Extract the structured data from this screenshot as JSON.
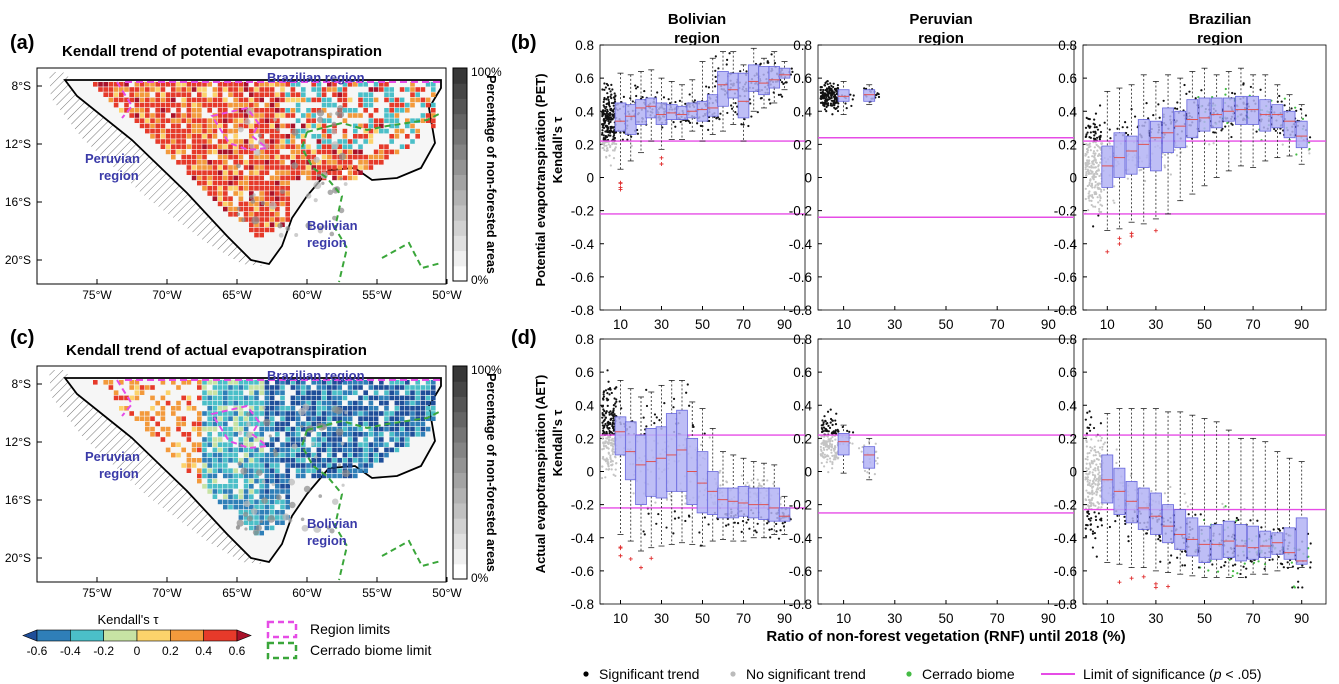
{
  "panels": {
    "a": {
      "letter": "(a)",
      "title": "Kendall trend of potential evapotranspiration"
    },
    "b": {
      "letter": "(b)"
    },
    "c": {
      "letter": "(c)",
      "title": "Kendall trend of actual evapotranspiration"
    },
    "d": {
      "letter": "(d)"
    }
  },
  "maps": {
    "lat_ticks": [
      "8°S",
      "12°S",
      "16°S",
      "20°S"
    ],
    "lon_ticks": [
      "75°W",
      "70°W",
      "65°W",
      "60°W",
      "55°W",
      "50°W"
    ],
    "region_labels": {
      "brazilian": "Brazilian region",
      "peruvian": "Peruvian\nregion",
      "peruvian_l1": "Peruvian",
      "peruvian_l2": "region",
      "bolivian_l1": "Bolivian",
      "bolivian_l2": "region"
    },
    "colorbar": {
      "top": "100%",
      "bottom": "0%",
      "title": "Percentage of non-forested areas"
    },
    "kendall_legend": {
      "title": "Kendall's τ",
      "ticks": [
        "-0.6",
        "-0.4",
        "-0.2",
        "0",
        "0.2",
        "0.4",
        "0.6"
      ],
      "colors": [
        "#1f4e99",
        "#2f7fb8",
        "#4bbfc8",
        "#c7e3a4",
        "#fcd36b",
        "#f39a3c",
        "#e63a2a",
        "#a8122a"
      ]
    },
    "limit_legend": {
      "region": "Region limits",
      "cerrado": "Cerrado biome limit"
    }
  },
  "column_titles": [
    {
      "l1": "Bolivian",
      "l2": "region"
    },
    {
      "l1": "Peruvian",
      "l2": "region"
    },
    {
      "l1": "Brazilian",
      "l2": "region"
    }
  ],
  "row_labels": {
    "b": {
      "l1": "Potential evapotranspiration (PET)",
      "l2": "Kendall's τ"
    },
    "d": {
      "l1": "Actual evapotranspiration (AET)",
      "l2": "Kendall's τ"
    }
  },
  "x_label": "Ratio of non-forest vegetation (RNF) until 2018 (%)",
  "legend": {
    "significant": "Significant trend",
    "not_significant": "No significant trend",
    "cerrado": "Cerrado biome",
    "limit": "Limit of significance (",
    "limit_p": "p",
    "limit_end": " < .05)"
  },
  "colors": {
    "box": "#b3b3f5",
    "box_edge": "#6666dd",
    "limit": "#e64ce6",
    "median": "#e05050",
    "outlier": "#e03030",
    "cerrado": "#44bb44"
  },
  "chart_data": [
    {
      "type": "box",
      "panel": "b",
      "column": "Bolivian region",
      "x": [
        10,
        15,
        20,
        25,
        30,
        35,
        40,
        45,
        50,
        55,
        60,
        65,
        70,
        75,
        80,
        85,
        90
      ],
      "median": [
        0.34,
        0.37,
        0.42,
        0.43,
        0.38,
        0.39,
        0.38,
        0.4,
        0.41,
        0.42,
        0.56,
        0.53,
        0.46,
        0.58,
        0.57,
        0.59,
        0.62
      ],
      "q1": [
        0.28,
        0.26,
        0.32,
        0.36,
        0.32,
        0.35,
        0.35,
        0.36,
        0.34,
        0.37,
        0.43,
        0.48,
        0.36,
        0.52,
        0.5,
        0.54,
        0.6
      ],
      "q3": [
        0.45,
        0.44,
        0.47,
        0.48,
        0.45,
        0.44,
        0.43,
        0.45,
        0.46,
        0.5,
        0.64,
        0.63,
        0.63,
        0.68,
        0.67,
        0.67,
        0.66
      ],
      "whisker_low": [
        0.05,
        0.1,
        0.15,
        0.22,
        0.17,
        0.23,
        0.23,
        0.28,
        0.22,
        0.26,
        0.28,
        0.32,
        0.22,
        0.4,
        0.42,
        0.45,
        0.53
      ],
      "whisker_high": [
        0.63,
        0.62,
        0.64,
        0.65,
        0.6,
        0.58,
        0.56,
        0.59,
        0.7,
        0.72,
        0.76,
        0.76,
        0.68,
        0.78,
        0.72,
        0.76,
        0.7
      ],
      "significance_limits": [
        0.22,
        -0.22
      ],
      "ylim": [
        -0.8,
        0.8
      ]
    },
    {
      "type": "box",
      "panel": "b",
      "column": "Peruvian region",
      "x": [
        10,
        20
      ],
      "median": [
        0.49,
        0.5
      ],
      "q1": [
        0.46,
        0.46
      ],
      "q3": [
        0.53,
        0.53
      ],
      "whisker_low": [
        0.38,
        0.44
      ],
      "whisker_high": [
        0.58,
        0.56
      ],
      "significance_limits": [
        0.24,
        -0.24
      ],
      "ylim": [
        -0.8,
        0.8
      ]
    },
    {
      "type": "box",
      "panel": "b",
      "column": "Brazilian region",
      "x": [
        10,
        15,
        20,
        25,
        30,
        35,
        40,
        45,
        50,
        55,
        60,
        65,
        70,
        75,
        80,
        85,
        90
      ],
      "median": [
        0.07,
        0.12,
        0.16,
        0.2,
        0.24,
        0.27,
        0.31,
        0.35,
        0.36,
        0.38,
        0.4,
        0.41,
        0.41,
        0.38,
        0.38,
        0.34,
        0.25
      ],
      "q1": [
        -0.06,
        0.0,
        0.02,
        0.06,
        0.04,
        0.15,
        0.18,
        0.24,
        0.28,
        0.3,
        0.34,
        0.32,
        0.32,
        0.28,
        0.3,
        0.24,
        0.18
      ],
      "q3": [
        0.19,
        0.27,
        0.25,
        0.35,
        0.34,
        0.42,
        0.4,
        0.47,
        0.48,
        0.48,
        0.48,
        0.49,
        0.49,
        0.47,
        0.44,
        0.4,
        0.34
      ],
      "whisker_low": [
        -0.32,
        -0.31,
        -0.27,
        -0.28,
        -0.25,
        -0.22,
        -0.14,
        -0.1,
        -0.05,
        0.0,
        0.04,
        0.07,
        0.06,
        0.1,
        0.12,
        0.13,
        0.08
      ],
      "whisker_high": [
        0.52,
        0.54,
        0.56,
        0.62,
        0.58,
        0.62,
        0.6,
        0.64,
        0.66,
        0.62,
        0.64,
        0.66,
        0.62,
        0.62,
        0.56,
        0.5,
        0.44
      ],
      "significance_limits": [
        0.22,
        -0.22
      ],
      "ylim": [
        -0.8,
        0.8
      ]
    },
    {
      "type": "box",
      "panel": "d",
      "column": "Bolivian region",
      "x": [
        10,
        15,
        20,
        25,
        30,
        35,
        40,
        45,
        50,
        55,
        60,
        65,
        70,
        75,
        80,
        85,
        90
      ],
      "median": [
        0.24,
        0.12,
        0.04,
        0.06,
        0.08,
        0.1,
        0.13,
        0.0,
        -0.07,
        -0.12,
        -0.17,
        -0.18,
        -0.19,
        -0.2,
        -0.2,
        -0.22,
        -0.27
      ],
      "q1": [
        0.1,
        -0.05,
        -0.2,
        -0.15,
        -0.16,
        -0.12,
        -0.12,
        -0.2,
        -0.25,
        -0.26,
        -0.28,
        -0.28,
        -0.27,
        -0.28,
        -0.29,
        -0.3,
        -0.3
      ],
      "q3": [
        0.33,
        0.3,
        0.22,
        0.26,
        0.27,
        0.35,
        0.37,
        0.2,
        0.12,
        0.0,
        -0.1,
        -0.1,
        -0.09,
        -0.1,
        -0.1,
        -0.1,
        -0.22
      ],
      "whisker_low": [
        -0.38,
        -0.42,
        -0.48,
        -0.46,
        -0.45,
        -0.44,
        -0.43,
        -0.44,
        -0.45,
        -0.42,
        -0.41,
        -0.42,
        -0.42,
        -0.4,
        -0.4,
        -0.38,
        -0.38
      ],
      "whisker_high": [
        0.55,
        0.5,
        0.45,
        0.48,
        0.52,
        0.55,
        0.55,
        0.42,
        0.38,
        0.26,
        0.12,
        0.1,
        0.08,
        0.06,
        0.05,
        0.04,
        -0.15
      ],
      "significance_limits": [
        0.22,
        -0.22
      ],
      "ylim": [
        -0.8,
        0.8
      ]
    },
    {
      "type": "box",
      "panel": "d",
      "column": "Peruvian region",
      "x": [
        10,
        20
      ],
      "median": [
        0.18,
        0.1
      ],
      "q1": [
        0.1,
        0.02
      ],
      "q3": [
        0.23,
        0.15
      ],
      "whisker_low": [
        -0.01,
        -0.05
      ],
      "whisker_high": [
        0.28,
        0.2
      ],
      "significance_limits": [
        0.22,
        -0.25
      ],
      "ylim": [
        -0.8,
        0.8
      ]
    },
    {
      "type": "box",
      "panel": "d",
      "column": "Brazilian region",
      "x": [
        10,
        15,
        20,
        25,
        30,
        35,
        40,
        45,
        50,
        55,
        60,
        65,
        70,
        75,
        80,
        85,
        90
      ],
      "median": [
        -0.05,
        -0.12,
        -0.18,
        -0.22,
        -0.27,
        -0.33,
        -0.38,
        -0.41,
        -0.44,
        -0.44,
        -0.42,
        -0.45,
        -0.46,
        -0.45,
        -0.43,
        -0.49,
        -0.54
      ],
      "q1": [
        -0.19,
        -0.26,
        -0.31,
        -0.35,
        -0.38,
        -0.43,
        -0.47,
        -0.51,
        -0.55,
        -0.53,
        -0.52,
        -0.54,
        -0.53,
        -0.52,
        -0.5,
        -0.53,
        -0.56
      ],
      "q3": [
        0.1,
        0.02,
        -0.06,
        -0.1,
        -0.13,
        -0.2,
        -0.23,
        -0.28,
        -0.33,
        -0.32,
        -0.3,
        -0.32,
        -0.33,
        -0.36,
        -0.37,
        -0.34,
        -0.28
      ],
      "whisker_low": [
        -0.55,
        -0.56,
        -0.58,
        -0.58,
        -0.6,
        -0.61,
        -0.62,
        -0.63,
        -0.64,
        -0.64,
        -0.64,
        -0.64,
        -0.62,
        -0.62,
        -0.6,
        -0.58,
        -0.58
      ],
      "whisker_high": [
        0.35,
        0.38,
        0.38,
        0.38,
        0.38,
        0.36,
        0.36,
        0.34,
        0.32,
        0.3,
        0.25,
        0.2,
        0.2,
        0.18,
        0.12,
        0.08,
        0.06
      ],
      "significance_limits": [
        0.22,
        -0.23
      ],
      "ylim": [
        -0.8,
        0.8
      ]
    }
  ]
}
